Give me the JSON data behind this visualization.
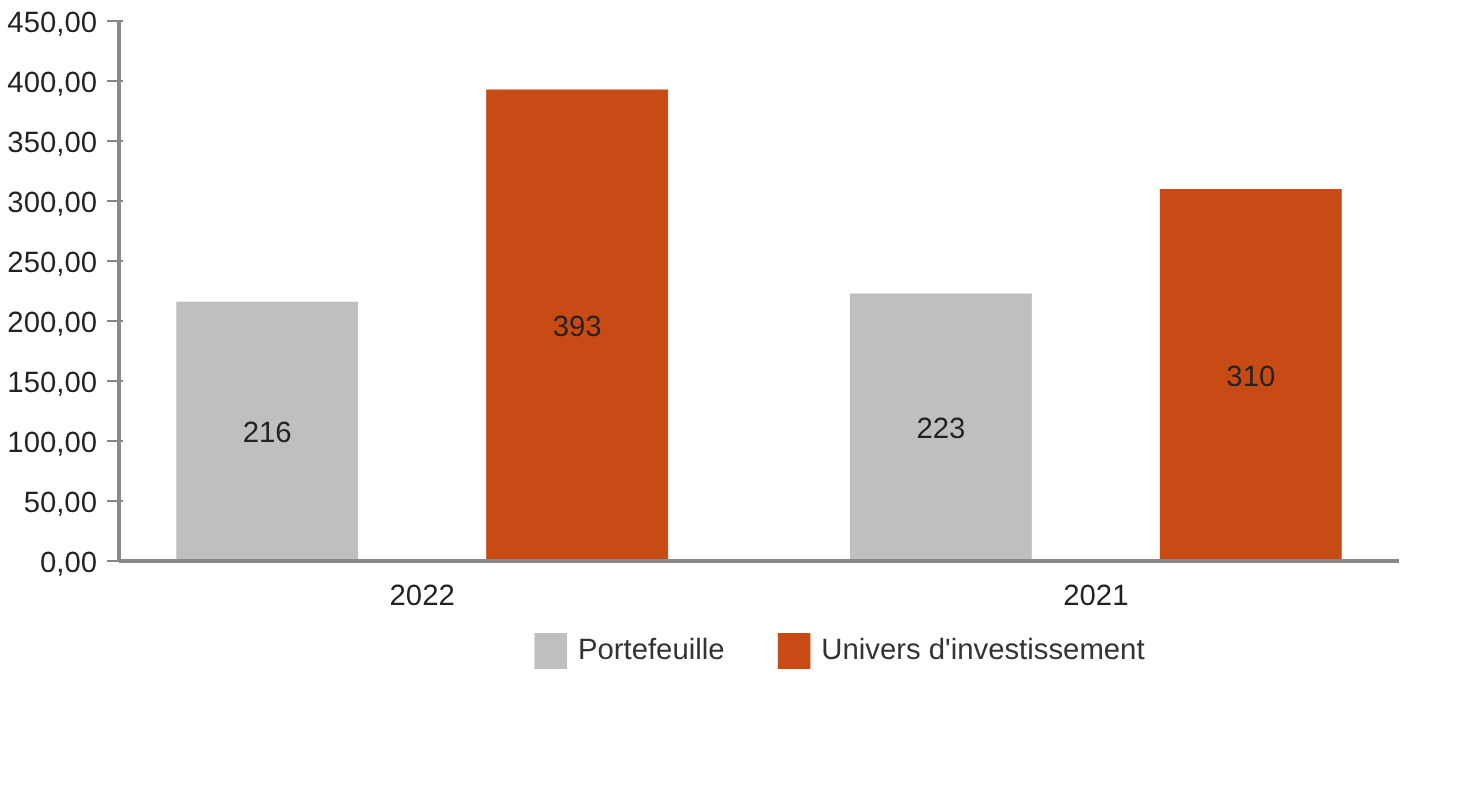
{
  "chart_data": {
    "type": "bar",
    "categories": [
      "2022",
      "2021"
    ],
    "series": [
      {
        "name": "Portefeuille",
        "color": "#bfbfbf",
        "values": [
          216,
          223
        ]
      },
      {
        "name": "Univers d'investissement",
        "color": "#c84b16",
        "values": [
          393,
          310
        ]
      }
    ],
    "ylim": [
      0,
      450
    ],
    "yticks": [
      {
        "value": 0,
        "label": "0,00"
      },
      {
        "value": 50,
        "label": "50,00"
      },
      {
        "value": 100,
        "label": "100,00"
      },
      {
        "value": 150,
        "label": "150,00"
      },
      {
        "value": 200,
        "label": "200,00"
      },
      {
        "value": 250,
        "label": "250,00"
      },
      {
        "value": 300,
        "label": "300,00"
      },
      {
        "value": 350,
        "label": "350,00"
      },
      {
        "value": 400,
        "label": "400,00"
      },
      {
        "value": 450,
        "label": "450,00"
      }
    ],
    "data_labels": true,
    "grid": false,
    "legend": "bottom"
  }
}
